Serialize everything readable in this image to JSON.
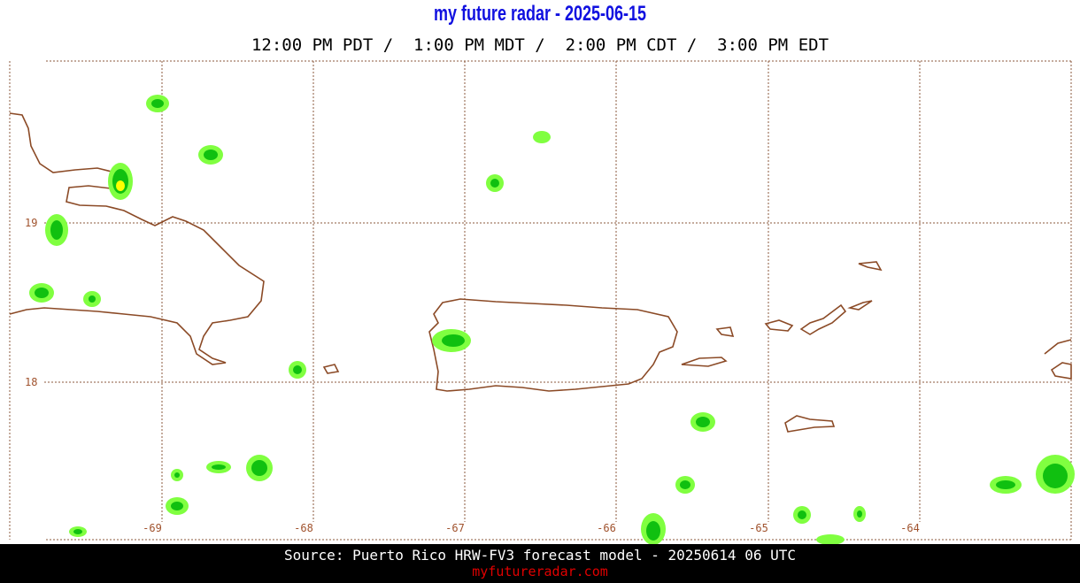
{
  "header": {
    "title": "my future radar - 2025-06-15",
    "subtitle": "12:00 PM PDT /  1:00 PM MDT /  2:00 PM CDT /  3:00 PM EDT"
  },
  "map": {
    "lat_labels": [
      "19",
      "18"
    ],
    "lon_labels": [
      "-69",
      "-68",
      "-67",
      "-66",
      "-65",
      "-64"
    ]
  },
  "footer": {
    "source": "Source: Puerto Rico HRW-FV3 forecast model - 20250614 06 UTC",
    "site": "myfutureradar.com"
  }
}
